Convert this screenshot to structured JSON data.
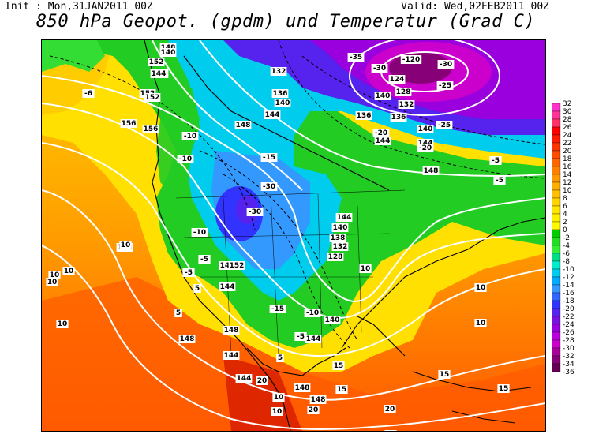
{
  "header": {
    "init_text": "Init : Mon,31JAN2011 00Z",
    "valid_text": "Valid: Wed,02FEB2011 00Z",
    "title": "850 hPa Geopot. (gpdm) und Temperatur (Grad C)"
  },
  "colorbar": {
    "ticks": [
      "32",
      "30",
      "28",
      "26",
      "24",
      "22",
      "20",
      "18",
      "16",
      "14",
      "12",
      "10",
      "8",
      "6",
      "4",
      "2",
      "0",
      "-2",
      "-4",
      "-6",
      "-8",
      "-10",
      "-12",
      "-14",
      "-16",
      "-18",
      "-20",
      "-22",
      "-24",
      "-26",
      "-28",
      "-30",
      "-32",
      "-34",
      "-36"
    ],
    "colors": [
      "#ff33cc",
      "#ff3399",
      "#ff3366",
      "#ff0000",
      "#ff1a00",
      "#ff3300",
      "#ff4d00",
      "#ff6600",
      "#ff8000",
      "#ff9900",
      "#ffad00",
      "#ffc000",
      "#ffd300",
      "#ffe600",
      "#fff000",
      "#fffa00",
      "#00cc00",
      "#22dd22",
      "#33ee33",
      "#00dd88",
      "#00eecc",
      "#00ccee",
      "#00aaff",
      "#3399ff",
      "#3366ff",
      "#3333ff",
      "#5522ee",
      "#7711dd",
      "#9900dd",
      "#bb00dd",
      "#cc00cc",
      "#aa0099",
      "#880077",
      "#660055"
    ]
  },
  "map_labels": {
    "geopotential": [
      {
        "text": "-120"
      },
      {
        "text": "124"
      },
      {
        "text": "128"
      },
      {
        "text": "132"
      },
      {
        "text": "136"
      },
      {
        "text": "140"
      },
      {
        "text": "144"
      },
      {
        "text": "148"
      },
      {
        "text": "152"
      },
      {
        "text": "156"
      },
      {
        "text": "132"
      },
      {
        "text": "136"
      },
      {
        "text": "140"
      },
      {
        "text": "144"
      },
      {
        "text": "148"
      },
      {
        "text": "152"
      },
      {
        "text": "156"
      },
      {
        "text": "140"
      },
      {
        "text": "144"
      },
      {
        "text": "152"
      },
      {
        "text": "156"
      },
      {
        "text": "140"
      },
      {
        "text": "138"
      },
      {
        "text": "132"
      },
      {
        "text": "128"
      },
      {
        "text": "144"
      },
      {
        "text": "148"
      },
      {
        "text": "144"
      },
      {
        "text": "140"
      },
      {
        "text": "144"
      },
      {
        "text": "148"
      },
      {
        "text": "148"
      },
      {
        "text": "144"
      },
      {
        "text": "152"
      },
      {
        "text": "148"
      },
      {
        "text": "136"
      },
      {
        "text": "140"
      },
      {
        "text": "144"
      },
      {
        "text": "148"
      },
      {
        "text": "144"
      },
      {
        "text": "144"
      },
      {
        "text": "148"
      }
    ],
    "temperature": [
      {
        "text": "-35"
      },
      {
        "text": "-30"
      },
      {
        "text": "-30"
      },
      {
        "text": "-25"
      },
      {
        "text": "-20"
      },
      {
        "text": "-5"
      },
      {
        "text": "-30"
      },
      {
        "text": "-30"
      },
      {
        "text": "-15"
      },
      {
        "text": "-10"
      },
      {
        "text": "-10"
      },
      {
        "text": "-10"
      },
      {
        "text": "-5"
      },
      {
        "text": "-5"
      },
      {
        "text": "-6"
      },
      {
        "text": "10"
      },
      {
        "text": "10"
      },
      {
        "text": "10"
      },
      {
        "text": "10"
      },
      {
        "text": "10"
      },
      {
        "text": "10"
      },
      {
        "text": "10"
      },
      {
        "text": "5"
      },
      {
        "text": "5"
      },
      {
        "text": "-15"
      },
      {
        "text": "-10"
      },
      {
        "text": "-5"
      },
      {
        "text": "5"
      },
      {
        "text": "10"
      },
      {
        "text": "15"
      },
      {
        "text": "15"
      },
      {
        "text": "15"
      },
      {
        "text": "15"
      },
      {
        "text": "20"
      },
      {
        "text": "20"
      },
      {
        "text": "20"
      },
      {
        "text": "15"
      },
      {
        "text": "10"
      },
      {
        "text": "10"
      },
      {
        "text": "-20"
      },
      {
        "text": "-25"
      },
      {
        "text": "-5"
      }
    ]
  }
}
